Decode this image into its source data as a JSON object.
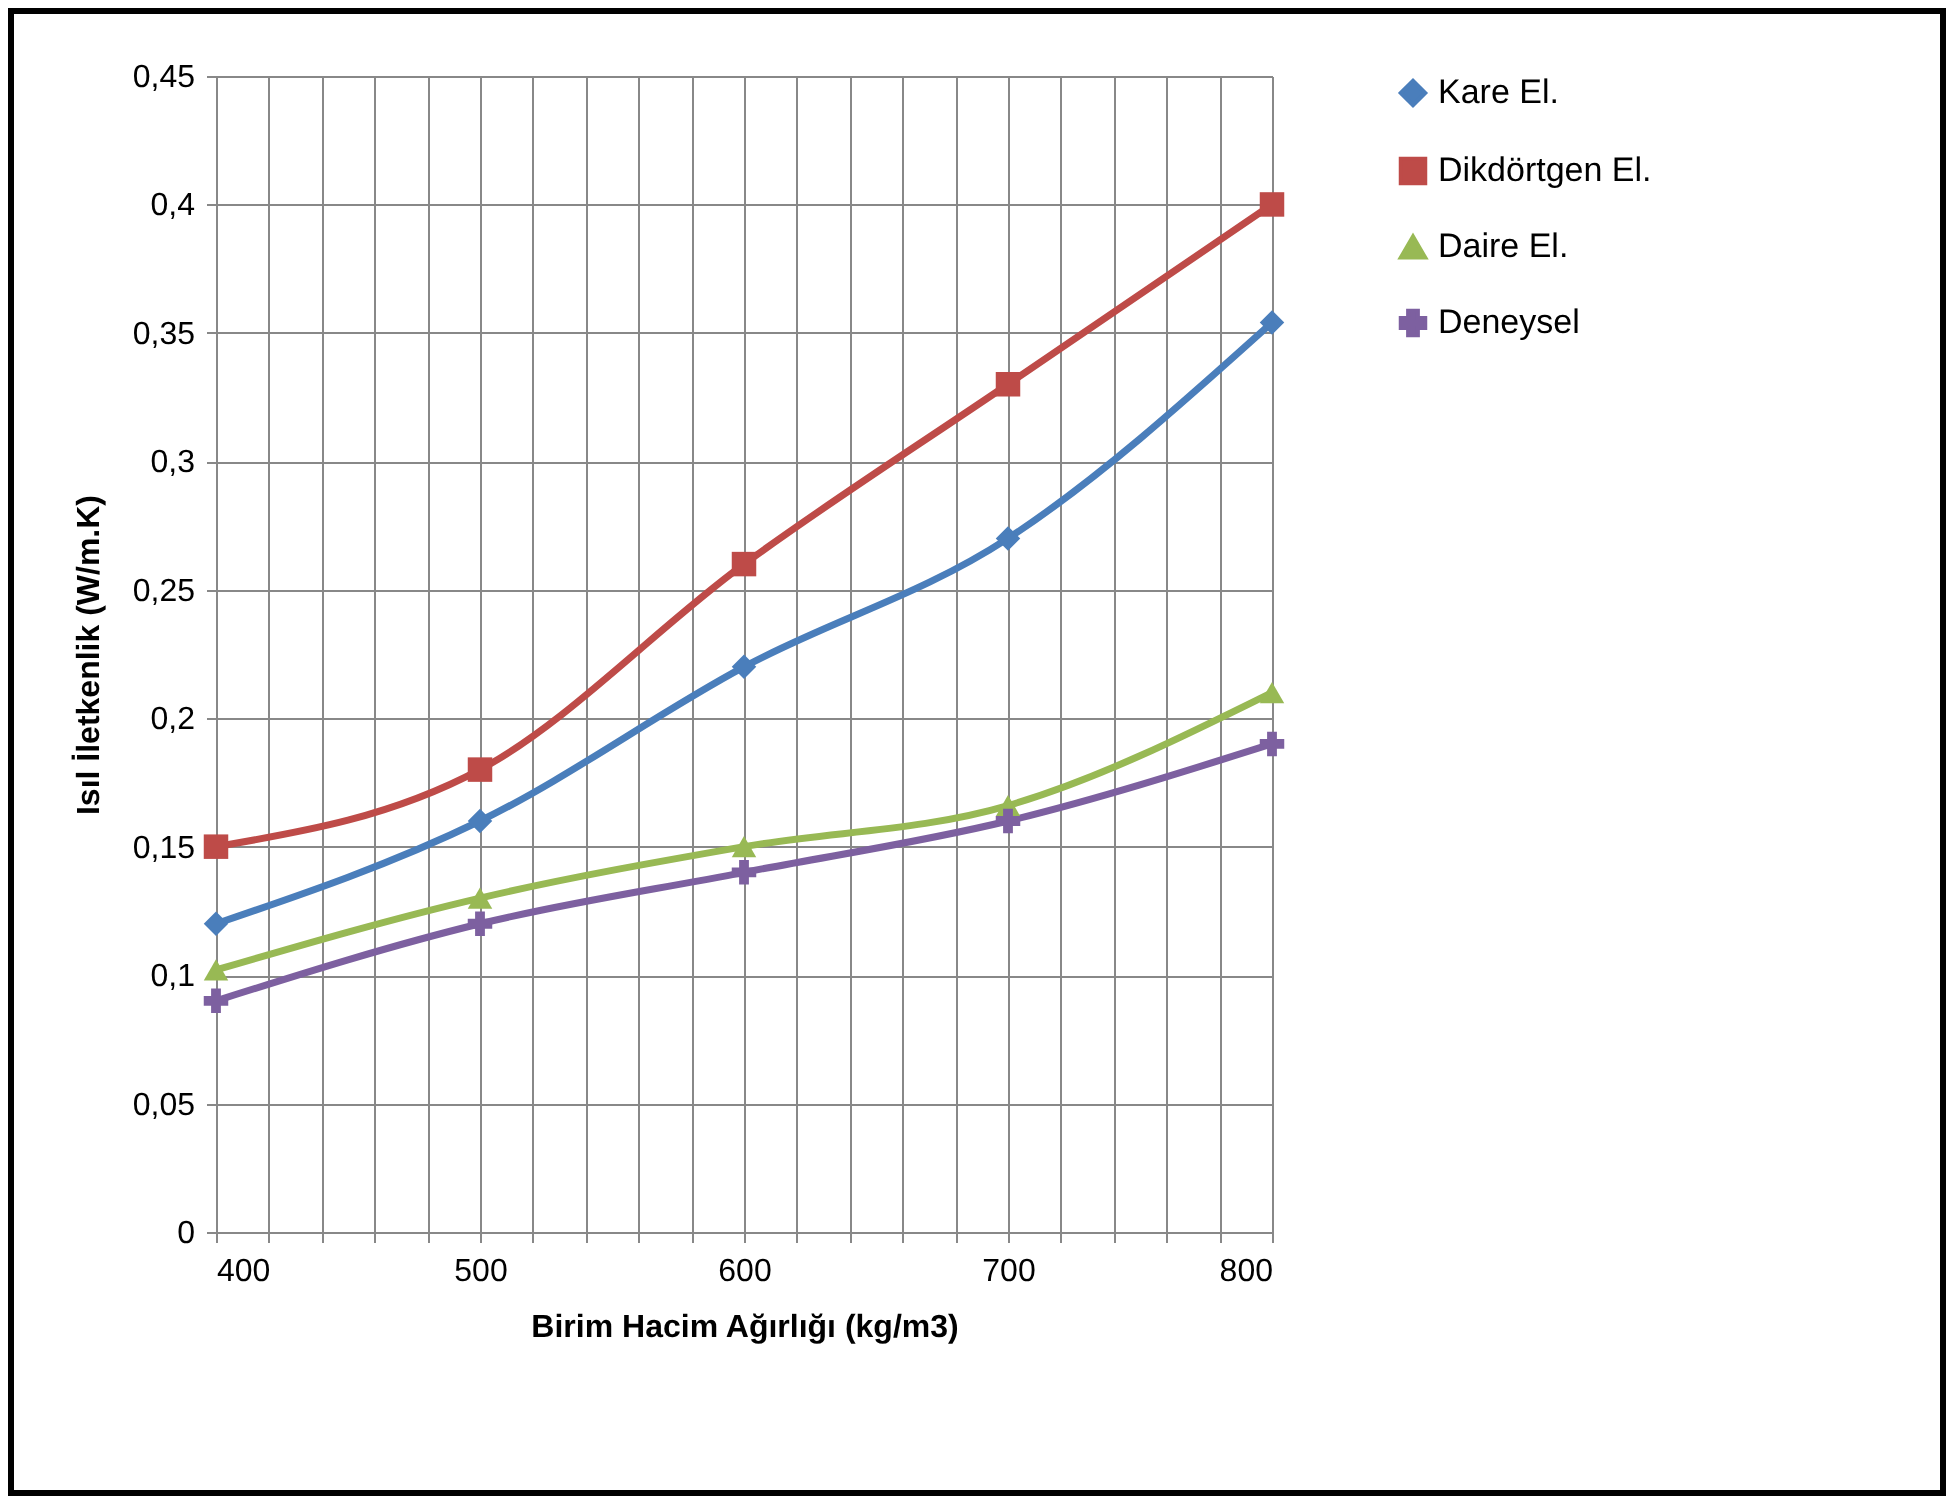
{
  "chart_data": {
    "type": "line",
    "xlabel": "Birim Hacim Ağırlığı (kg/m3)",
    "ylabel": "Isıl İletkenlik (W/m.K)",
    "x": [
      400,
      500,
      600,
      700,
      800
    ],
    "series": [
      {
        "name": "Kare El.",
        "color": "#4a7ebb",
        "marker": "diamond",
        "values": [
          0.12,
          0.16,
          0.22,
          0.27,
          0.354
        ]
      },
      {
        "name": "Dikdörtgen El.",
        "color": "#be4b48",
        "marker": "square",
        "values": [
          0.15,
          0.18,
          0.26,
          0.33,
          0.4
        ]
      },
      {
        "name": "Daire El.",
        "color": "#98b954",
        "marker": "triangle",
        "values": [
          0.102,
          0.13,
          0.15,
          0.166,
          0.21
        ]
      },
      {
        "name": "Deneysel",
        "color": "#7d60a0",
        "marker": "cross",
        "values": [
          0.09,
          0.12,
          0.14,
          0.16,
          0.19
        ]
      }
    ],
    "xlim": [
      400,
      800
    ],
    "xticks": [
      400,
      {
        "value": 420,
        "label": null
      },
      {
        "value": 440,
        "label": null
      },
      {
        "value": 460,
        "label": null
      },
      {
        "value": 480,
        "label": null
      },
      500,
      {
        "value": 520,
        "label": null
      },
      {
        "value": 540,
        "label": null
      },
      {
        "value": 560,
        "label": null
      },
      {
        "value": 580,
        "label": null
      },
      600,
      {
        "value": 620,
        "label": null
      },
      {
        "value": 640,
        "label": null
      },
      {
        "value": 660,
        "label": null
      },
      {
        "value": 680,
        "label": null
      },
      700,
      {
        "value": 720,
        "label": null
      },
      {
        "value": 740,
        "label": null
      },
      {
        "value": 760,
        "label": null
      },
      {
        "value": 780,
        "label": null
      },
      800
    ],
    "ylim": [
      0,
      0.45
    ],
    "yticks": [
      0,
      {
        "value": 0.05,
        "label": "0,05"
      },
      {
        "value": 0.1,
        "label": "0,1"
      },
      {
        "value": 0.15,
        "label": "0,15"
      },
      {
        "value": 0.2,
        "label": "0,2"
      },
      {
        "value": 0.25,
        "label": "0,25"
      },
      {
        "value": 0.3,
        "label": "0,3"
      },
      {
        "value": 0.35,
        "label": "0,35"
      },
      {
        "value": 0.4,
        "label": "0,4"
      },
      {
        "value": 0.45,
        "label": "0,45"
      }
    ],
    "grid": true,
    "legend": "right",
    "line_style": "solid"
  }
}
